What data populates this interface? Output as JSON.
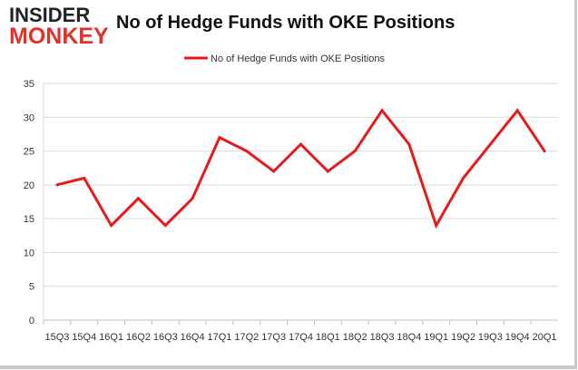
{
  "logo": {
    "top": "INSIDER",
    "bottom": "MONKEY"
  },
  "colors": {
    "series": "#e8191b",
    "logo_accent": "#e0322a",
    "grid": "#d9d9d9",
    "axis": "#bfbfbf"
  },
  "chart_data": {
    "type": "line",
    "title": "No of Hedge Funds with OKE Positions",
    "xlabel": "",
    "ylabel": "",
    "ylim": [
      0,
      35
    ],
    "yticks": [
      0,
      5,
      10,
      15,
      20,
      25,
      30,
      35
    ],
    "grid": true,
    "legend": "top-center",
    "categories": [
      "15Q3",
      "15Q4",
      "16Q1",
      "16Q2",
      "16Q3",
      "16Q4",
      "17Q1",
      "17Q2",
      "17Q3",
      "17Q4",
      "18Q1",
      "18Q2",
      "18Q3",
      "18Q4",
      "19Q1",
      "19Q2",
      "19Q3",
      "19Q4",
      "20Q1"
    ],
    "series": [
      {
        "name": "No of Hedge Funds with OKE Positions",
        "values": [
          20,
          21,
          14,
          18,
          14,
          18,
          27,
          25,
          22,
          26,
          22,
          25,
          31,
          26,
          14,
          21,
          26,
          31,
          25
        ]
      }
    ]
  }
}
